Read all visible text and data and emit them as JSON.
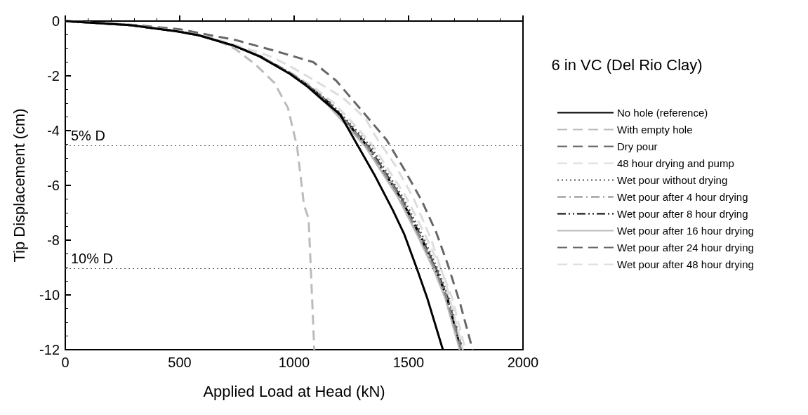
{
  "chart_data": {
    "type": "line",
    "xlabel": "Applied Load at Head (kN)",
    "ylabel": "Tip Displacement (cm)",
    "legend_title": "6 in VC (Del Rio Clay)",
    "legend": "right",
    "grid": false,
    "marker": "none",
    "xlim": [
      0,
      2000
    ],
    "xticks": [
      0,
      500,
      1000,
      1500,
      2000
    ],
    "ylim": [
      -12,
      0
    ],
    "yticks": [
      -12,
      -10,
      -8,
      -6,
      -4,
      -2,
      0
    ],
    "ref_lines": [
      {
        "axis": "y",
        "value": -4.55,
        "label": "5% D",
        "color": "#555555",
        "line_style": "dotted"
      },
      {
        "axis": "y",
        "value": -9.03,
        "label": "10% D",
        "color": "#555555",
        "line_style": "dotted"
      }
    ],
    "series": [
      {
        "name": "No hole (reference)",
        "color": "#000000",
        "line_style": "solid",
        "x": [
          0,
          284,
          485,
          584,
          734,
          850,
          982,
          1060,
          1132,
          1200,
          1281,
          1350,
          1431,
          1482,
          1536,
          1581,
          1650
        ],
        "values": [
          0,
          -0.15,
          -0.37,
          -0.52,
          -0.89,
          -1.3,
          -1.93,
          -2.4,
          -2.93,
          -3.4,
          -4.59,
          -5.6,
          -6.9,
          -7.8,
          -9.03,
          -10.1,
          -12
        ]
      },
      {
        "name": "With empty hole",
        "color": "#bbbbbb",
        "line_style": "dashed",
        "x": [
          0,
          300,
          500,
          640,
          743,
          833,
          914,
          973,
          1013,
          1043,
          1063,
          1073,
          1088
        ],
        "values": [
          0,
          -0.15,
          -0.37,
          -0.6,
          -1.02,
          -1.6,
          -2.26,
          -3.17,
          -4.59,
          -6.72,
          -7.2,
          -9.05,
          -12
        ]
      },
      {
        "name": "Dry pour",
        "color": "#666666",
        "line_style": "dashed",
        "x": [
          0,
          300,
          500,
          743,
          900,
          1084,
          1184,
          1304,
          1404,
          1480,
          1560,
          1620,
          1671,
          1725,
          1780
        ],
        "values": [
          0,
          -0.14,
          -0.3,
          -0.69,
          -1.05,
          -1.5,
          -2.18,
          -3.35,
          -4.34,
          -5.4,
          -6.6,
          -7.7,
          -8.88,
          -10.3,
          -12
        ]
      },
      {
        "name": "48 hour drying and pump",
        "color": "#dddddd",
        "line_style": "dashed",
        "x": [
          0,
          284,
          485,
          600,
          784,
          900,
          982,
          1102,
          1213,
          1311,
          1362,
          1443,
          1521,
          1600,
          1660,
          1738
        ],
        "values": [
          0,
          -0.14,
          -0.34,
          -0.5,
          -0.98,
          -1.3,
          -1.65,
          -2.23,
          -2.8,
          -3.55,
          -4.29,
          -5.28,
          -6.45,
          -8,
          -9.5,
          -12
        ]
      },
      {
        "name": "Wet pour without drying",
        "color": "#555555",
        "line_style": "dotted",
        "x": [
          0,
          284,
          485,
          584,
          734,
          850,
          982,
          1060,
          1160,
          1250,
          1335,
          1410,
          1472,
          1558,
          1625,
          1676,
          1736
        ],
        "values": [
          0,
          -0.15,
          -0.37,
          -0.52,
          -0.89,
          -1.28,
          -1.9,
          -2.35,
          -3,
          -3.8,
          -4.59,
          -5.6,
          -6.4,
          -7.8,
          -9.03,
          -10.1,
          -12
        ]
      },
      {
        "name": "Wet pour after 4 hour drying",
        "color": "#888888",
        "line_style": "dashdot",
        "x": [
          0,
          284,
          485,
          584,
          734,
          850,
          982,
          1060,
          1150,
          1238,
          1320,
          1398,
          1460,
          1545,
          1615,
          1666,
          1730
        ],
        "values": [
          0,
          -0.15,
          -0.37,
          -0.52,
          -0.89,
          -1.28,
          -1.9,
          -2.35,
          -3,
          -3.8,
          -4.59,
          -5.6,
          -6.4,
          -7.8,
          -9.03,
          -10.1,
          -12
        ]
      },
      {
        "name": "Wet pour after 8 hour drying",
        "color": "#000000",
        "line_style": "dashdotdot",
        "x": [
          0,
          284,
          485,
          584,
          734,
          850,
          982,
          1060,
          1153,
          1240,
          1323,
          1400,
          1462,
          1548,
          1617,
          1668,
          1731
        ],
        "values": [
          0,
          -0.15,
          -0.37,
          -0.52,
          -0.89,
          -1.28,
          -1.9,
          -2.35,
          -3,
          -3.8,
          -4.59,
          -5.6,
          -6.4,
          -7.8,
          -9.03,
          -10.1,
          -12
        ]
      },
      {
        "name": "Wet pour after 16 hour drying",
        "color": "#bbbbbb",
        "line_style": "solid",
        "x": [
          0,
          284,
          485,
          584,
          734,
          850,
          975,
          1050,
          1140,
          1228,
          1312,
          1390,
          1452,
          1538,
          1608,
          1660,
          1724
        ],
        "values": [
          0,
          -0.15,
          -0.37,
          -0.52,
          -0.89,
          -1.28,
          -1.9,
          -2.35,
          -3,
          -3.8,
          -4.59,
          -5.6,
          -6.4,
          -7.8,
          -9.03,
          -10.1,
          -12
        ]
      },
      {
        "name": "Wet pour after 24 hour drying",
        "color": "#666666",
        "line_style": "dashed",
        "x": [
          0,
          284,
          485,
          584,
          734,
          850,
          982,
          1060,
          1155,
          1243,
          1326,
          1403,
          1465,
          1551,
          1620,
          1671,
          1733
        ],
        "values": [
          0,
          -0.15,
          -0.37,
          -0.52,
          -0.89,
          -1.28,
          -1.9,
          -2.35,
          -3,
          -3.8,
          -4.59,
          -5.6,
          -6.4,
          -7.8,
          -9.03,
          -10.1,
          -12
        ]
      },
      {
        "name": "Wet pour after 48 hour drying",
        "color": "#dddddd",
        "line_style": "dashed",
        "x": [
          0,
          284,
          485,
          584,
          734,
          850,
          990,
          1075,
          1175,
          1265,
          1348,
          1425,
          1488,
          1572,
          1640,
          1690,
          1748
        ],
        "values": [
          0,
          -0.15,
          -0.37,
          -0.52,
          -0.89,
          -1.28,
          -1.9,
          -2.35,
          -3,
          -3.8,
          -4.59,
          -5.6,
          -6.4,
          -7.8,
          -9.03,
          -10.1,
          -12
        ]
      }
    ]
  }
}
